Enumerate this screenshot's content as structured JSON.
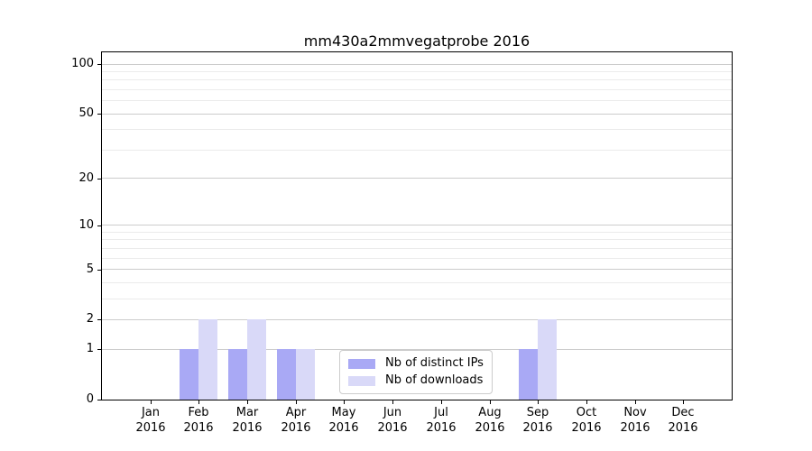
{
  "chart_data": {
    "type": "bar",
    "title": "mm430a2mmvegatprobe 2016",
    "categories": [
      "Jan",
      "Feb",
      "Mar",
      "Apr",
      "May",
      "Jun",
      "Jul",
      "Aug",
      "Sep",
      "Oct",
      "Nov",
      "Dec"
    ],
    "year_label": "2016",
    "series": [
      {
        "name": "Nb of distinct IPs",
        "color": "#a9a9f5",
        "values": [
          0,
          1,
          1,
          1,
          0,
          0,
          0,
          0,
          1,
          0,
          0,
          0
        ]
      },
      {
        "name": "Nb of downloads",
        "color": "#d9d9f8",
        "values": [
          0,
          2,
          2,
          1,
          0,
          0,
          0,
          0,
          2,
          0,
          0,
          0
        ]
      }
    ],
    "xlabel": "",
    "ylabel": "",
    "yscale": "log1p",
    "ylim": [
      0,
      118
    ],
    "yticks": [
      0,
      1,
      2,
      5,
      10,
      20,
      50,
      100
    ],
    "minor_gridlines": [
      3,
      4,
      6,
      7,
      8,
      9,
      30,
      40,
      60,
      70,
      80,
      90
    ],
    "grid": "horizontal",
    "legend_position": "bottom-center",
    "colors": {
      "spine": "#000000",
      "grid_major": "#cccccc",
      "grid_minor": "#ebebeb",
      "text": "#000000",
      "background": "#ffffff"
    }
  }
}
